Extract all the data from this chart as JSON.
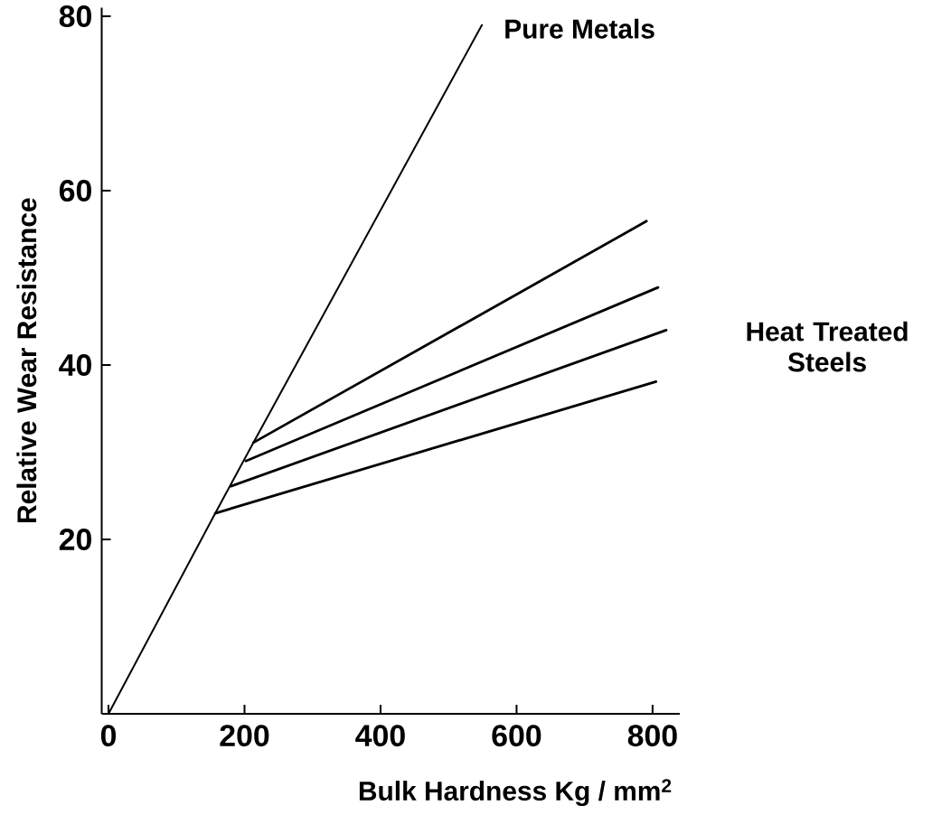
{
  "chart_data": {
    "type": "line",
    "xlabel": "Bulk Hardness Kg / mm$^{2}$",
    "ylabel": "Relative Wear Resistance",
    "annotations": [
      "Heat Treated Steels"
    ],
    "xlim": [
      -10,
      840
    ],
    "ylim": [
      0,
      81
    ],
    "xticks": [
      0,
      200,
      400,
      600,
      800
    ],
    "yticks": [
      20,
      40,
      60,
      80
    ],
    "series": [
      {
        "name": "Pure Metals",
        "color": "#000000",
        "x": [
          0,
          157,
          213,
          549
        ],
        "values": [
          0,
          23,
          31.1,
          79
        ]
      },
      {
        "color": "#000000",
        "x": [
          213,
          791
        ],
        "values": [
          31.1,
          56.5
        ]
      },
      {
        "color": "#000000",
        "x": [
          202,
          808
        ],
        "values": [
          29,
          48.9
        ]
      },
      {
        "color": "#000000",
        "x": [
          180,
          820
        ],
        "values": [
          26.1,
          44
        ]
      },
      {
        "color": "#000000",
        "x": [
          157,
          805
        ],
        "values": [
          23,
          38.1
        ]
      }
    ]
  }
}
